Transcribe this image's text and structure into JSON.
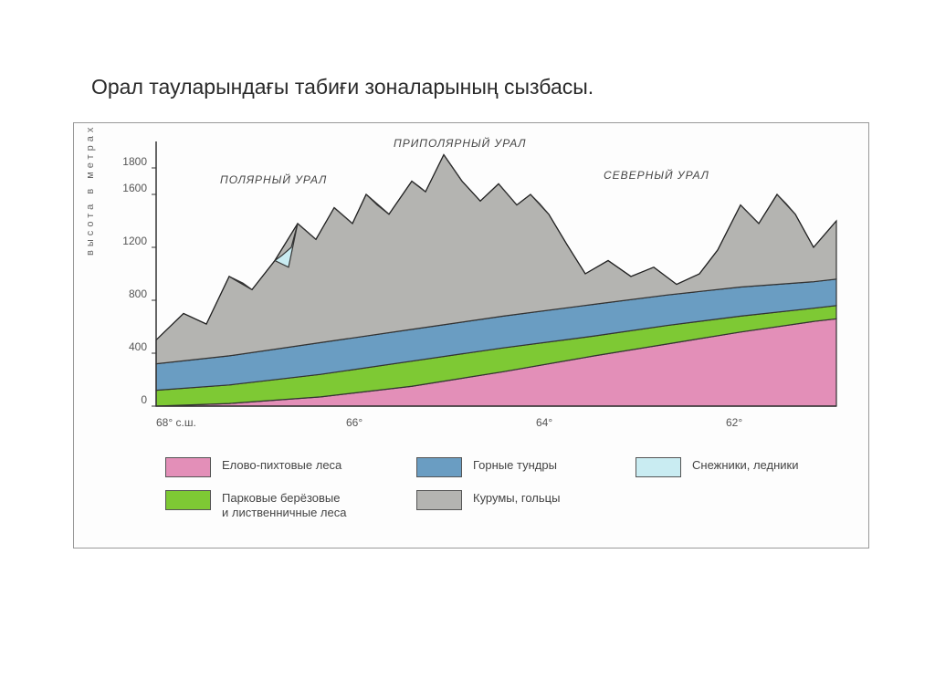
{
  "title": "Орал тауларындағы табиғи зоналарының сызбасы.",
  "yAxis": {
    "label": "высота  в  метрах",
    "ticks": [
      0,
      400,
      800,
      1200,
      1600,
      1800
    ]
  },
  "xAxis": {
    "ticks": [
      "68° с.ш.",
      "66°",
      "64°",
      "62°"
    ]
  },
  "regions": [
    {
      "label": "ПОЛЯРНЫЙ УРАЛ"
    },
    {
      "label": "ПРИПОЛЯРНЫЙ УРАЛ"
    },
    {
      "label": "СЕВЕРНЫЙ УРАЛ"
    }
  ],
  "chart": {
    "type": "area-profile",
    "ylim": [
      0,
      2000
    ],
    "xlim": [
      68,
      60.5
    ],
    "background": "#fdfdfb",
    "axis_color": "#333333",
    "colors": {
      "spruce_fir": "#e38fb8",
      "birch_larch": "#7ec934",
      "mountain_tundra": "#6a9dc2",
      "kurum": "#b4b4b1",
      "glacier": "#c9ecf2"
    },
    "zone_boundaries": {
      "spruce_fir_top": [
        [
          0,
          0
        ],
        [
          80,
          20
        ],
        [
          180,
          70
        ],
        [
          280,
          150
        ],
        [
          380,
          260
        ],
        [
          480,
          380
        ],
        [
          560,
          470
        ],
        [
          640,
          560
        ],
        [
          720,
          640
        ],
        [
          745,
          660
        ]
      ],
      "birch_larch_top": [
        [
          0,
          120
        ],
        [
          80,
          160
        ],
        [
          180,
          240
        ],
        [
          280,
          340
        ],
        [
          380,
          440
        ],
        [
          480,
          530
        ],
        [
          560,
          610
        ],
        [
          640,
          680
        ],
        [
          720,
          740
        ],
        [
          745,
          760
        ]
      ],
      "tundra_top": [
        [
          0,
          320
        ],
        [
          80,
          380
        ],
        [
          180,
          480
        ],
        [
          280,
          580
        ],
        [
          380,
          680
        ],
        [
          480,
          770
        ],
        [
          560,
          840
        ],
        [
          640,
          900
        ],
        [
          720,
          940
        ],
        [
          745,
          960
        ]
      ],
      "kurum_top_ridge": [
        [
          0,
          500
        ],
        [
          30,
          700
        ],
        [
          55,
          620
        ],
        [
          80,
          980
        ],
        [
          105,
          880
        ],
        [
          130,
          1100
        ],
        [
          155,
          1380
        ],
        [
          175,
          1260
        ],
        [
          195,
          1500
        ],
        [
          215,
          1380
        ],
        [
          230,
          1600
        ],
        [
          255,
          1450
        ],
        [
          280,
          1700
        ],
        [
          295,
          1620
        ],
        [
          315,
          1900
        ],
        [
          335,
          1700
        ],
        [
          355,
          1550
        ],
        [
          375,
          1680
        ],
        [
          395,
          1520
        ],
        [
          410,
          1600
        ],
        [
          430,
          1450
        ],
        [
          450,
          1220
        ],
        [
          470,
          1000
        ],
        [
          495,
          1100
        ],
        [
          520,
          980
        ],
        [
          545,
          1050
        ],
        [
          570,
          920
        ],
        [
          595,
          1000
        ],
        [
          615,
          1180
        ],
        [
          640,
          1520
        ],
        [
          660,
          1380
        ],
        [
          680,
          1600
        ],
        [
          700,
          1450
        ],
        [
          720,
          1200
        ],
        [
          745,
          1400
        ]
      ]
    },
    "glacier_caps": [
      [
        [
          80,
          980
        ],
        [
          95,
          930
        ],
        [
          105,
          880
        ]
      ],
      [
        [
          130,
          1100
        ],
        [
          145,
          1050
        ],
        [
          155,
          1380
        ],
        [
          148,
          1200
        ],
        [
          138,
          1140
        ]
      ],
      [
        [
          155,
          1380
        ],
        [
          165,
          1320
        ],
        [
          175,
          1260
        ]
      ],
      [
        [
          195,
          1500
        ],
        [
          205,
          1440
        ],
        [
          215,
          1380
        ]
      ],
      [
        [
          230,
          1600
        ],
        [
          242,
          1520
        ],
        [
          255,
          1450
        ]
      ],
      [
        [
          280,
          1700
        ],
        [
          288,
          1660
        ],
        [
          295,
          1620
        ]
      ],
      [
        [
          315,
          1900
        ],
        [
          325,
          1800
        ],
        [
          335,
          1700
        ]
      ],
      [
        [
          375,
          1680
        ],
        [
          385,
          1600
        ],
        [
          395,
          1520
        ]
      ],
      [
        [
          410,
          1600
        ],
        [
          420,
          1530
        ],
        [
          430,
          1450
        ]
      ],
      [
        [
          640,
          1520
        ],
        [
          650,
          1450
        ],
        [
          660,
          1380
        ]
      ],
      [
        [
          680,
          1600
        ],
        [
          690,
          1530
        ],
        [
          700,
          1450
        ]
      ]
    ]
  },
  "legend": [
    {
      "color": "#e38fb8",
      "label": "Елово-пихтовые леса"
    },
    {
      "color": "#6a9dc2",
      "label": "Горные тундры"
    },
    {
      "color": "#c9ecf2",
      "label": "Снежники, ледники"
    },
    {
      "color": "#7ec934",
      "label": "Парковые берёзовые\nи лиственничные леса"
    },
    {
      "color": "#b4b4b1",
      "label": "Курумы, гольцы"
    }
  ]
}
